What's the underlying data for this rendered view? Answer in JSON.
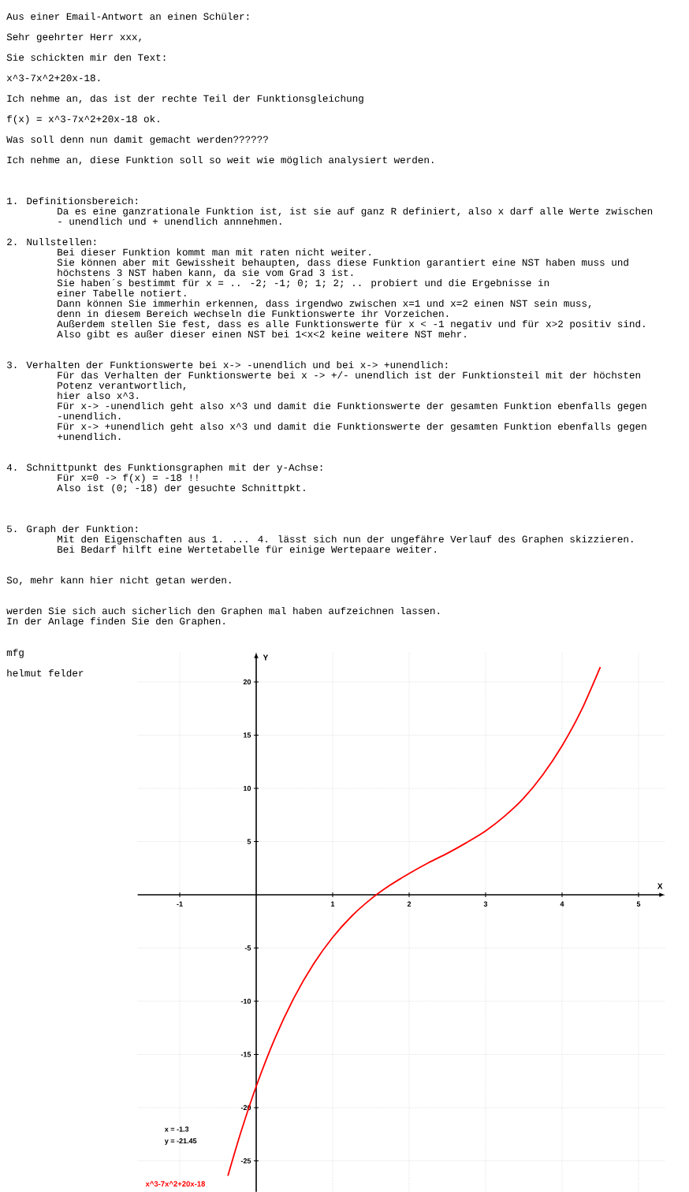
{
  "chart_data": {
    "type": "line",
    "xlim": [
      -1.55,
      5.35
    ],
    "ylim": [
      -27.9,
      22.8
    ],
    "xticks": [
      -1,
      1,
      2,
      3,
      4,
      5
    ],
    "yticks": [
      -25,
      -20,
      -15,
      -10,
      -5,
      5,
      10,
      15,
      20
    ],
    "xlabel": "X",
    "ylabel": "Y",
    "grid": true,
    "series": [
      {
        "name": "x^3-7x^2+20x-18",
        "color": "#ff0000",
        "x": [
          -0.37,
          -0.2,
          0,
          0.25,
          0.5,
          0.75,
          1,
          1.25,
          1.5,
          1.75,
          2,
          2.25,
          2.5,
          2.75,
          3,
          3.25,
          3.5,
          3.75,
          4,
          4.25,
          4.5
        ],
        "values": [
          -26.4,
          -22.3,
          -18,
          -13.4,
          -9.6,
          -6.5,
          -4,
          -2,
          -0.4,
          0.9,
          2,
          3,
          3.9,
          4.9,
          6,
          7.4,
          9.1,
          11.3,
          14,
          17.3,
          21.4
        ]
      }
    ],
    "annotations": [
      "Aus einer Email-Antwort an einen Schüler:",
      "Sehr geehrter Herr xxx,",
      "Sie schickten mir den Text:",
      "x^3-7x^2+20x-18.",
      "Ich nehme an, das ist der rechte Teil der Funktionsgleichung",
      "f(x) = x^3-7x^2+20x-18  ok.",
      "Was soll denn nun damit gemacht werden??????",
      "Ich nehme an, diese Funktion soll so weit wie möglich analysiert werden.",
      "1.  Definitionsbereich:",
      "Da es eine ganzrationale Funktion ist, ist sie auf ganz R definiert, also x darf alle Werte zwischen",
      "- unendlich und + unendlich annnehmen.",
      "2. Nullstellen:",
      "Bei dieser Funktion kommt man mit raten nicht weiter.",
      "Sie können aber mit Gewissheit behaupten, dass diese Funktion garantiert eine NST haben muss und",
      "höchstens 3 NST haben kann, da sie vom Grad 3 ist.",
      "Sie haben´s bestimmt für x = .. -2; -1; 0; 1; 2; .. probiert und die Ergebnisse in",
      "einer Tabelle notiert.",
      "Dann können Sie immerhin erkennen, dass irgendwo zwischen x=1 und x=2 einen NST sein muss,",
      "denn in diesem Bereich wechseln die Funktionswerte ihr Vorzeichen.",
      "Außerdem stellen Sie fest, dass es alle Funktionswerte für x < -1  negativ und für x>2 positiv sind.",
      "Also gibt es außer dieser einen NST bei 1<x<2 keine weitere NST mehr.",
      "3. Verhalten der Funktionswerte bei x-> -unendlich und bei x-> +unendlich:",
      "Für das Verhalten der Funktionswerte bei x -> +/- unendlich ist der Funktionsteil mit der höchsten",
      "Potenz verantwortlich,",
      "hier also x^3.",
      "Für x-> -unendlich geht also x^3 und damit die Funktionswerte der gesamten Funktion ebenfalls gegen",
      "-unendlich.",
      "Für x-> +unendlich geht also x^3 und damit die Funktionswerte der gesamten Funktion ebenfalls gegen",
      "+unendlich.",
      "4. Schnittpunkt des Funktionsgraphen mit der y-Achse:",
      "Für x=0  -> f(x) = -18 !!",
      "Also ist (0; -18) der gesuchte Schnittpkt.",
      "5. Graph der Funktion:",
      "Mit den Eigenschaften aus 1. ... 4.  lässt sich nun der ungefähre Verlauf des Graphen skizzieren.",
      "Bei Bedarf hilft eine Wertetabelle für einige Wertepaare weiter.",
      "So, mehr kann hier nicht getan werden.",
      "werden Sie sich auch sicherlich den Graphen mal haben aufzeichnen lassen.",
      "In der Anlage finden Sie den Graphen.",
      "mfg",
      "helmut felder",
      "x = -1.3",
      "y = -21.45"
    ]
  }
}
